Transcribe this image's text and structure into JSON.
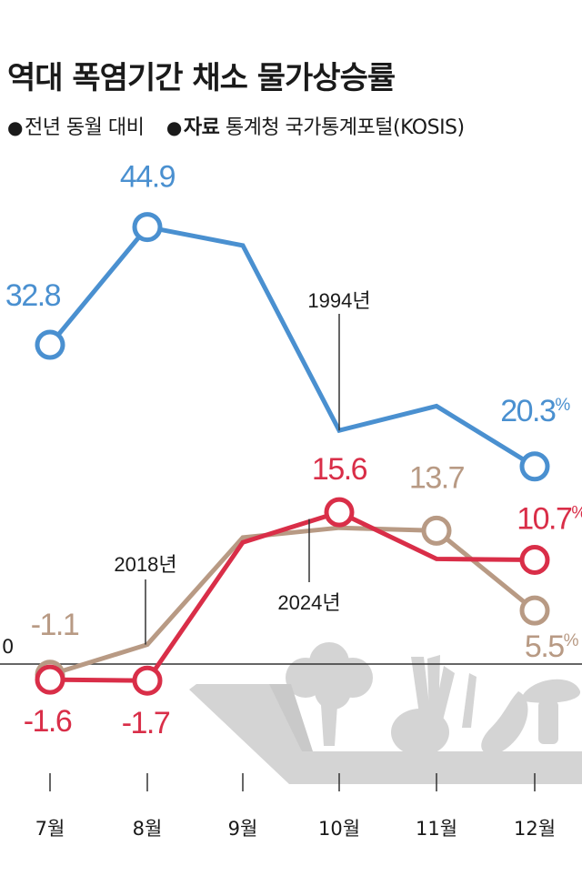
{
  "header": {
    "title": "역대 폭염기간 채소 물가상승률",
    "subtitle_bullet": "●",
    "subtitle_basis": "전년 동월 대비",
    "source_bullet": "●",
    "source_label": "자료",
    "source_text": "통계청 국가통계포털(KOSIS)"
  },
  "chart_data": {
    "type": "line",
    "categories": [
      "7월",
      "8월",
      "9월",
      "10월",
      "11월",
      "12월"
    ],
    "zero_label": "0",
    "unit_suffix": "%",
    "series": [
      {
        "name": "1994년",
        "color": "#4a90d0",
        "values": [
          32.8,
          44.9,
          43.0,
          24.0,
          26.5,
          20.3
        ],
        "labels": [
          "32.8",
          "44.9",
          null,
          null,
          null,
          "20.3"
        ]
      },
      {
        "name": "2018년",
        "color": "#b89a84",
        "values": [
          -1.1,
          2.0,
          13.0,
          14.0,
          13.7,
          5.5
        ],
        "labels": [
          "-1.1",
          null,
          null,
          null,
          "13.7",
          "5.5"
        ]
      },
      {
        "name": "2024년",
        "color": "#d92e48",
        "values": [
          -1.6,
          -1.7,
          12.5,
          15.6,
          10.8,
          10.7
        ],
        "labels": [
          "-1.6",
          "-1.7",
          null,
          "15.6",
          null,
          "10.7"
        ]
      }
    ]
  }
}
